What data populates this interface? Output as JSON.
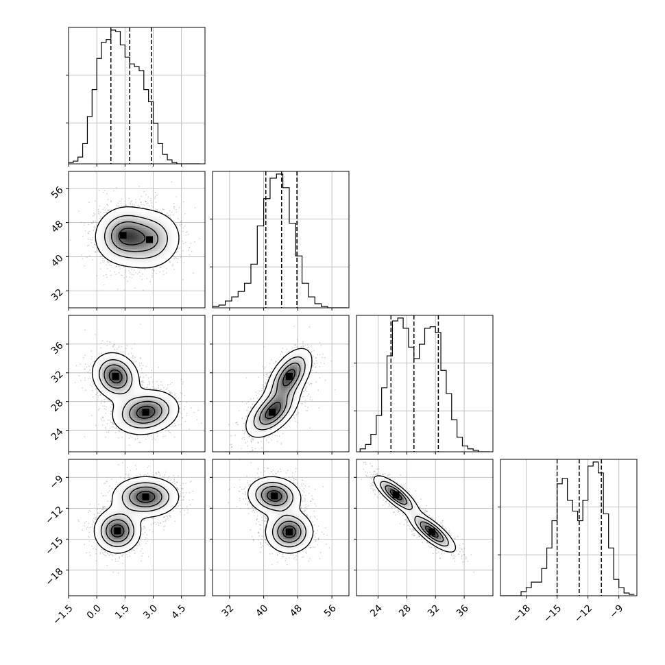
{
  "chart_data": {
    "type": "corner",
    "grid": true,
    "parameters": [
      {
        "index": 0,
        "range": [
          -1.5,
          5.75
        ],
        "ticks": [
          -1.5,
          0.0,
          1.5,
          3.0,
          4.5
        ],
        "tick_labels": [
          "−1.5",
          "0.0",
          "1.5",
          "3.0",
          "4.5"
        ],
        "quantiles": [
          0.75,
          1.75,
          2.9
        ],
        "hist_y_ticks": [
          0,
          0.5,
          1
        ],
        "hist_bins": [
          -1.5,
          -1.25,
          -1.0,
          -0.75,
          -0.5,
          -0.25,
          0.0,
          0.25,
          0.5,
          0.75,
          1.0,
          1.25,
          1.5,
          1.75,
          2.0,
          2.25,
          2.5,
          2.75,
          3.0,
          3.25,
          3.5,
          3.75,
          4.0,
          4.25,
          4.5,
          4.75,
          5.0,
          5.25,
          5.5
        ],
        "hist_counts": [
          0.01,
          0.02,
          0.05,
          0.15,
          0.35,
          0.55,
          0.78,
          0.9,
          0.92,
          0.99,
          0.98,
          0.88,
          0.79,
          0.74,
          0.72,
          0.69,
          0.55,
          0.46,
          0.3,
          0.15,
          0.07,
          0.03,
          0.01,
          0.0,
          0.0,
          0.0,
          0.0,
          0.0
        ]
      },
      {
        "index": 1,
        "range": [
          28.0,
          60.0
        ],
        "ticks": [
          32,
          40,
          48,
          56
        ],
        "tick_labels": [
          "32",
          "40",
          "48",
          "56"
        ],
        "quantiles": [
          40.5,
          44.2,
          47.8
        ],
        "hist_y_ticks": [
          0,
          0.3,
          0.6,
          0.9
        ],
        "hist_bins": [
          28,
          29.5,
          31,
          32.5,
          34,
          35.5,
          37,
          38.5,
          40,
          41.5,
          43,
          44.5,
          46,
          47.5,
          49,
          50.5,
          52,
          53.5,
          55,
          56.5,
          58,
          59.5
        ],
        "hist_counts": [
          0.01,
          0.02,
          0.05,
          0.08,
          0.12,
          0.18,
          0.32,
          0.6,
          0.8,
          0.95,
          0.98,
          0.88,
          0.62,
          0.38,
          0.18,
          0.08,
          0.03,
          0.01,
          0.0,
          0.0,
          0.0
        ]
      },
      {
        "index": 2,
        "range": [
          21.0,
          40.0
        ],
        "ticks": [
          24,
          28,
          32,
          36
        ],
        "tick_labels": [
          "24",
          "28",
          "32",
          "36"
        ],
        "quantiles": [
          25.8,
          29.0,
          32.4
        ],
        "hist_y_ticks": [
          0,
          0.22,
          0.44,
          0.66,
          0.88
        ],
        "hist_bins": [
          21.5,
          22.25,
          23.0,
          23.75,
          24.5,
          25.25,
          26.0,
          26.75,
          27.5,
          28.25,
          29.0,
          29.75,
          30.5,
          31.25,
          32.0,
          32.75,
          33.5,
          34.25,
          35.0,
          35.75,
          36.5,
          37.25,
          38.0,
          38.75,
          39.5
        ],
        "hist_counts": [
          0.02,
          0.05,
          0.12,
          0.25,
          0.44,
          0.66,
          0.9,
          0.92,
          0.85,
          0.72,
          0.64,
          0.74,
          0.85,
          0.86,
          0.82,
          0.56,
          0.4,
          0.22,
          0.1,
          0.04,
          0.02,
          0.01,
          0.0,
          0.0
        ]
      },
      {
        "index": 3,
        "range": [
          -20.5,
          -7.25
        ],
        "ticks": [
          -18,
          -15,
          -12,
          -9
        ],
        "tick_labels": [
          "−18",
          "−15",
          "−12",
          "−9"
        ],
        "quantiles": [
          -15.0,
          -12.85,
          -10.7
        ],
        "hist_y_ticks": [
          0,
          0.5,
          1
        ],
        "hist_bins": [
          -20.5,
          -20.0,
          -19.5,
          -19.0,
          -18.5,
          -18.0,
          -17.5,
          -16.5,
          -16.0,
          -15.5,
          -15.0,
          -14.5,
          -14.0,
          -13.5,
          -13.0,
          -12.5,
          -12.0,
          -11.5,
          -11.0,
          -10.5,
          -10.0,
          -9.5,
          -9.0,
          -8.5,
          -8.0,
          -7.5
        ],
        "hist_counts": [
          0.0,
          0.0,
          0.0,
          0.0,
          0.03,
          0.06,
          0.1,
          0.2,
          0.35,
          0.55,
          0.82,
          0.86,
          0.7,
          0.62,
          0.55,
          0.7,
          0.95,
          0.98,
          0.9,
          0.6,
          0.35,
          0.12,
          0.06,
          0.02,
          0.01
        ]
      }
    ],
    "pairs": [
      {
        "x": 0,
        "y": 1,
        "components": [
          {
            "mx": 1.4,
            "my": 45.0,
            "sx": 0.75,
            "sy": 3.3,
            "rho": 0.05,
            "w": 0.55
          },
          {
            "mx": 2.8,
            "my": 44.0,
            "sx": 0.85,
            "sy": 3.5,
            "rho": 0.05,
            "w": 0.45
          }
        ]
      },
      {
        "x": 0,
        "y": 2,
        "components": [
          {
            "mx": 1.0,
            "my": 31.5,
            "sx": 0.6,
            "sy": 1.6,
            "rho": -0.15,
            "w": 0.5
          },
          {
            "mx": 2.6,
            "my": 26.5,
            "sx": 0.85,
            "sy": 1.5,
            "rho": 0.15,
            "w": 0.5
          }
        ]
      },
      {
        "x": 0,
        "y": 3,
        "components": [
          {
            "mx": 2.6,
            "my": -10.9,
            "sx": 0.85,
            "sy": 0.95,
            "rho": 0.0,
            "w": 0.5
          },
          {
            "mx": 1.1,
            "my": -14.2,
            "sx": 0.6,
            "sy": 1.05,
            "rho": 0.0,
            "w": 0.5
          }
        ]
      },
      {
        "x": 1,
        "y": 2,
        "components": [
          {
            "mx": 46.0,
            "my": 31.5,
            "sx": 2.6,
            "sy": 1.9,
            "rho": 0.55,
            "w": 0.5
          },
          {
            "mx": 42.0,
            "my": 26.5,
            "sx": 3.0,
            "sy": 1.7,
            "rho": 0.55,
            "w": 0.5
          }
        ]
      },
      {
        "x": 1,
        "y": 3,
        "components": [
          {
            "mx": 42.5,
            "my": -10.8,
            "sx": 3.0,
            "sy": 0.9,
            "rho": -0.1,
            "w": 0.5
          },
          {
            "mx": 46.0,
            "my": -14.3,
            "sx": 2.7,
            "sy": 1.0,
            "rho": 0.0,
            "w": 0.5
          }
        ]
      },
      {
        "x": 2,
        "y": 3,
        "components": [
          {
            "mx": 26.5,
            "my": -10.7,
            "sx": 1.5,
            "sy": 0.9,
            "rho": -0.8,
            "w": 0.5
          },
          {
            "mx": 31.5,
            "my": -14.3,
            "sx": 1.6,
            "sy": 0.95,
            "rho": -0.8,
            "w": 0.5
          }
        ]
      }
    ],
    "contour_levels": [
      0.12,
      0.35,
      0.6,
      0.85
    ],
    "colors": {
      "line": "#000000",
      "grid": "#b0b0b0",
      "scatter": "#808080",
      "fill": "#444444"
    }
  }
}
